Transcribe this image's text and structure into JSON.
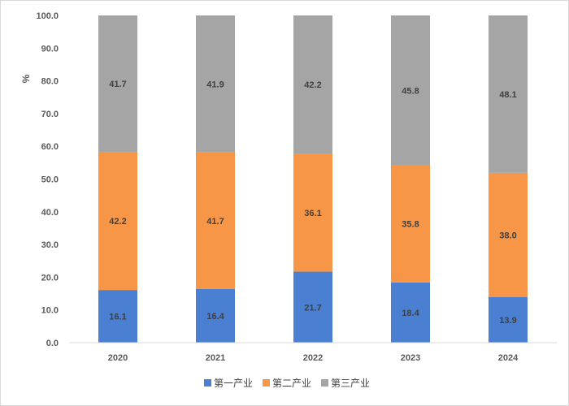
{
  "chart_data": {
    "type": "bar",
    "stacked": true,
    "categories": [
      "2020",
      "2021",
      "2022",
      "2023",
      "2024"
    ],
    "series": [
      {
        "name": "第一产业",
        "color": "#4a7fd1",
        "values": [
          16.1,
          16.4,
          21.7,
          18.4,
          13.9
        ]
      },
      {
        "name": "第二产业",
        "color": "#f79646",
        "values": [
          42.2,
          41.7,
          36.1,
          35.8,
          38.0
        ]
      },
      {
        "name": "第三产业",
        "color": "#a5a5a5",
        "values": [
          41.7,
          41.9,
          42.2,
          45.8,
          48.1
        ]
      }
    ],
    "title": "",
    "xlabel": "",
    "ylabel": "%",
    "ylim": [
      0,
      100
    ],
    "yticks": [
      "0.0",
      "10.0",
      "20.0",
      "30.0",
      "40.0",
      "50.0",
      "60.0",
      "70.0",
      "80.0",
      "90.0",
      "100.0"
    ],
    "grid": false,
    "legend_position": "bottom"
  }
}
